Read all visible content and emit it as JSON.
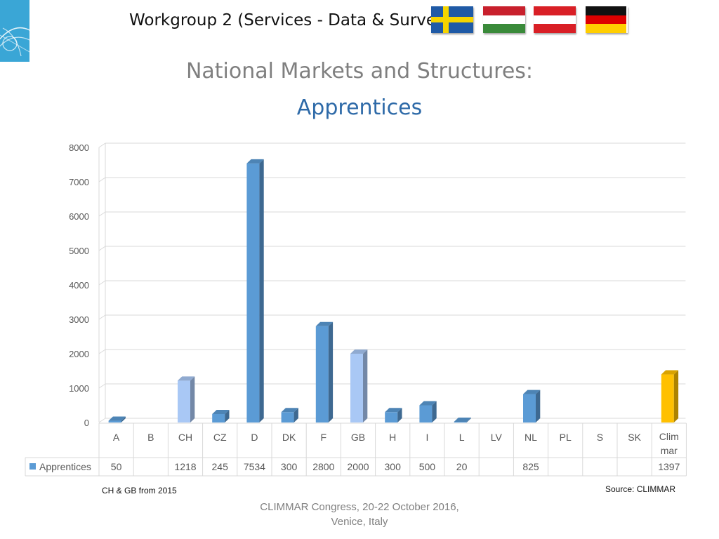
{
  "header": {
    "title": "Workgroup 2 (Services - Data & Surveys)"
  },
  "flags": [
    {
      "name": "sweden-flag",
      "colors": [
        "#1f5aa6",
        "#f5d400"
      ]
    },
    {
      "name": "hungary-flag",
      "colors": [
        "#c8202c",
        "#ffffff",
        "#3a8a3a"
      ]
    },
    {
      "name": "austria-flag",
      "colors": [
        "#d91f26",
        "#ffffff",
        "#d91f26"
      ]
    },
    {
      "name": "germany-flag",
      "colors": [
        "#111111",
        "#dd0000",
        "#ffce00"
      ]
    }
  ],
  "slide": {
    "title": "National Markets and Structures:",
    "subtitle": "Apprentices"
  },
  "chart_data": {
    "type": "bar",
    "categories": [
      "A",
      "B",
      "CH",
      "CZ",
      "D",
      "DK",
      "F",
      "GB",
      "H",
      "I",
      "L",
      "LV",
      "NL",
      "PL",
      "S",
      "SK",
      "Clim mar"
    ],
    "category_lines": [
      [
        "A"
      ],
      [
        "B"
      ],
      [
        "CH"
      ],
      [
        "CZ"
      ],
      [
        "D"
      ],
      [
        "DK"
      ],
      [
        "F"
      ],
      [
        "GB"
      ],
      [
        "H"
      ],
      [
        "I"
      ],
      [
        "L"
      ],
      [
        "LV"
      ],
      [
        "NL"
      ],
      [
        "PL"
      ],
      [
        "S"
      ],
      [
        "SK"
      ],
      [
        "Clim",
        "mar"
      ]
    ],
    "series": [
      {
        "name": "Apprentices",
        "values": [
          50,
          null,
          1218,
          245,
          7534,
          300,
          2800,
          2000,
          300,
          500,
          20,
          null,
          825,
          null,
          null,
          null,
          1397
        ]
      }
    ],
    "highlight": {
      "CH": "light",
      "GB": "light",
      "Clim mar": "gold"
    },
    "colors": {
      "default": "#5b9bd5",
      "light": "#a9c8f5",
      "gold": "#ffc000"
    },
    "ylim": [
      0,
      8000
    ],
    "yticks": [
      0,
      1000,
      2000,
      3000,
      4000,
      5000,
      6000,
      7000,
      8000
    ],
    "grid": true,
    "data_table": true
  },
  "notes": {
    "left": "CH & GB from 2015",
    "right": "Source: CLIMMAR"
  },
  "footer": {
    "line1": "CLIMMAR Congress, 20-22 October 2016,",
    "line2": "Venice, Italy"
  }
}
